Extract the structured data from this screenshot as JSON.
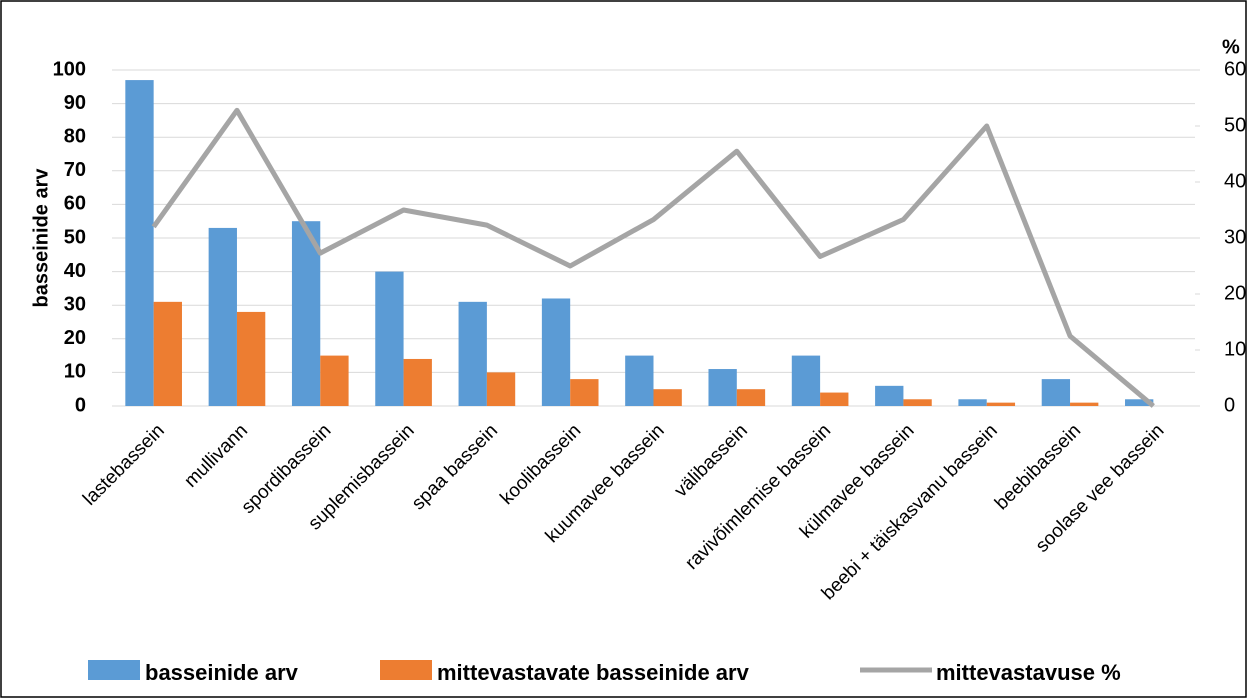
{
  "chart_data": {
    "type": "bar",
    "y_label": "basseinide arv",
    "y2_label": "%",
    "categories": [
      "lastebassein",
      "mullivann",
      "spordibassein",
      "suplemisbassein",
      "spaa bassein",
      "koolibassein",
      "kuumavee bassein",
      "välibassein",
      "ravivõimlemise bassein",
      "külmavee bassein",
      "beebi + täiskasvanu bassein",
      "beebibassein",
      "soolase vee bassein"
    ],
    "series": [
      {
        "name": "basseinide arv",
        "type": "bar",
        "color": "#5b9bd5",
        "values": [
          97,
          53,
          55,
          40,
          31,
          32,
          15,
          11,
          15,
          6,
          2,
          8,
          2
        ]
      },
      {
        "name": "mittevastavate basseinide arv",
        "type": "bar",
        "color": "#ed7d31",
        "values": [
          31,
          28,
          15,
          14,
          10,
          8,
          5,
          5,
          4,
          2,
          1,
          1,
          0
        ]
      },
      {
        "name": "mittevastavuse %",
        "type": "line",
        "axis": "y2",
        "color": "#a5a5a5",
        "values": [
          32,
          52.8,
          27.3,
          35,
          32.3,
          25,
          33.3,
          45.5,
          26.7,
          33.3,
          50,
          12.5,
          0
        ]
      }
    ],
    "ylim": [
      0,
      100
    ],
    "yticks": [
      0,
      10,
      20,
      30,
      40,
      50,
      60,
      70,
      80,
      90,
      100
    ],
    "y2lim": [
      0,
      60
    ],
    "y2ticks": [
      0,
      10,
      20,
      30,
      40,
      50,
      60
    ],
    "grid": true,
    "legend": "bottom"
  }
}
